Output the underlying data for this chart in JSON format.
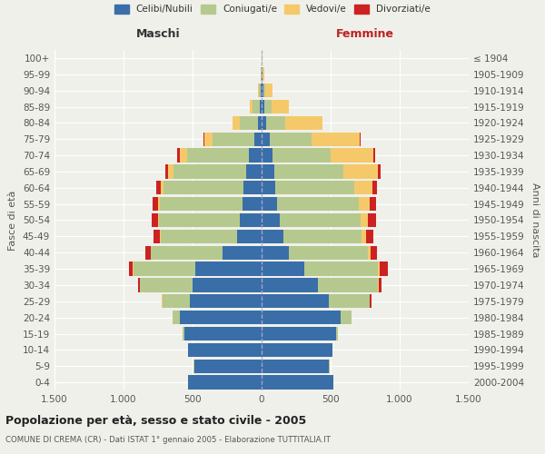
{
  "age_groups": [
    "0-4",
    "5-9",
    "10-14",
    "15-19",
    "20-24",
    "25-29",
    "30-34",
    "35-39",
    "40-44",
    "45-49",
    "50-54",
    "55-59",
    "60-64",
    "65-69",
    "70-74",
    "75-79",
    "80-84",
    "85-89",
    "90-94",
    "95-99",
    "100+"
  ],
  "birth_years": [
    "2000-2004",
    "1995-1999",
    "1990-1994",
    "1985-1989",
    "1980-1984",
    "1975-1979",
    "1970-1974",
    "1965-1969",
    "1960-1964",
    "1955-1959",
    "1950-1954",
    "1945-1949",
    "1940-1944",
    "1935-1939",
    "1930-1934",
    "1925-1929",
    "1920-1924",
    "1915-1919",
    "1910-1914",
    "1905-1909",
    "≤ 1904"
  ],
  "maschi": {
    "celibi": [
      530,
      490,
      530,
      560,
      590,
      520,
      500,
      480,
      280,
      175,
      155,
      140,
      130,
      110,
      90,
      55,
      25,
      15,
      8,
      3,
      2
    ],
    "coniugati": [
      2,
      2,
      3,
      10,
      55,
      200,
      380,
      450,
      520,
      555,
      590,
      600,
      580,
      530,
      450,
      300,
      130,
      50,
      15,
      2,
      1
    ],
    "vedovi": [
      0,
      0,
      0,
      0,
      1,
      1,
      2,
      3,
      4,
      6,
      8,
      12,
      20,
      35,
      55,
      60,
      55,
      20,
      5,
      1,
      0
    ],
    "divorziati": [
      0,
      0,
      0,
      0,
      2,
      5,
      15,
      30,
      35,
      45,
      45,
      40,
      30,
      20,
      15,
      5,
      2,
      1,
      0,
      0,
      0
    ]
  },
  "femmine": {
    "nubili": [
      520,
      490,
      510,
      540,
      570,
      490,
      410,
      310,
      200,
      155,
      130,
      115,
      100,
      90,
      80,
      60,
      30,
      20,
      10,
      4,
      2
    ],
    "coniugate": [
      2,
      2,
      3,
      12,
      80,
      290,
      430,
      530,
      570,
      570,
      590,
      590,
      570,
      500,
      420,
      300,
      140,
      55,
      18,
      3,
      1
    ],
    "vedove": [
      0,
      0,
      0,
      1,
      2,
      5,
      8,
      12,
      18,
      30,
      50,
      75,
      130,
      250,
      310,
      350,
      270,
      120,
      50,
      10,
      3
    ],
    "divorziate": [
      0,
      0,
      0,
      0,
      2,
      8,
      20,
      65,
      45,
      55,
      60,
      50,
      35,
      20,
      15,
      8,
      3,
      2,
      1,
      0,
      0
    ]
  },
  "colors": {
    "celibi": "#3a6ea8",
    "coniugati": "#b5c98e",
    "vedovi": "#f5c96a",
    "divorziati": "#cc2222"
  },
  "xlim": 1500,
  "xtick_vals": [
    -1500,
    -1000,
    -500,
    0,
    500,
    1000,
    1500
  ],
  "xtick_labels": [
    "1.500",
    "1.000",
    "500",
    "0",
    "500",
    "1.000",
    "1.500"
  ],
  "title": "Popolazione per età, sesso e stato civile - 2005",
  "subtitle": "COMUNE DI CREMA (CR) - Dati ISTAT 1° gennaio 2005 - Elaborazione TUTTITALIA.IT",
  "ylabel_left": "Fasce di età",
  "ylabel_right": "Anni di nascita",
  "xlabel_left": "Maschi",
  "xlabel_right": "Femmine",
  "bg_color": "#f0f0eb",
  "grid_color": "#ffffff",
  "bar_height": 0.85
}
